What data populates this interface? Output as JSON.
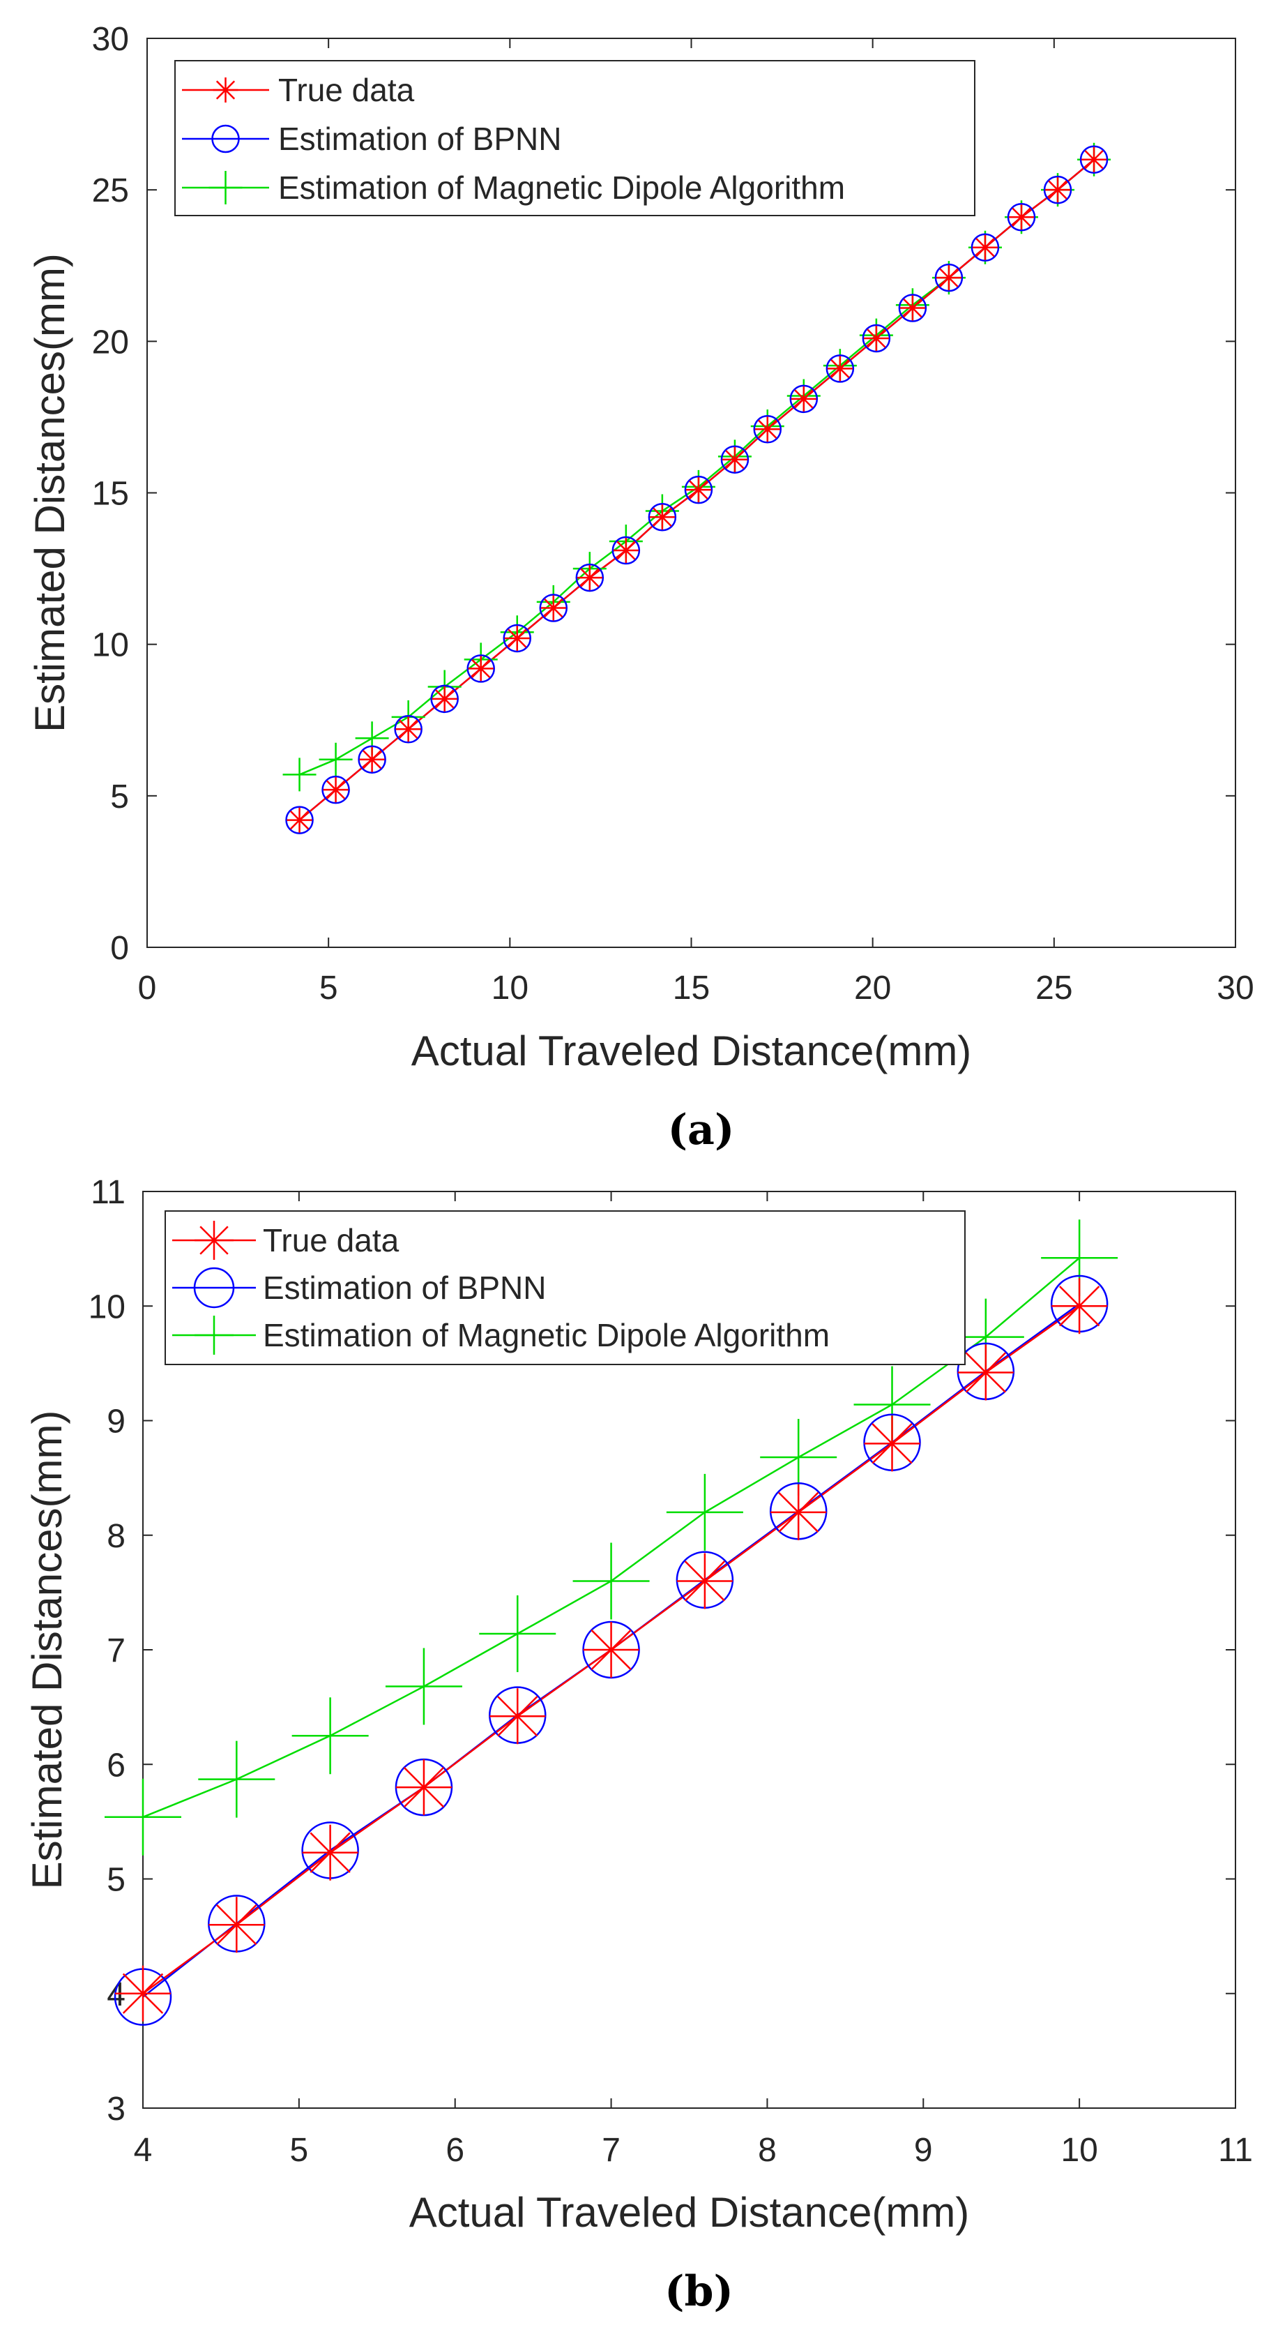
{
  "chart_data": [
    {
      "type": "line",
      "panel_label": "a",
      "caption": "(a)",
      "title": "",
      "xlabel": "Actual Traveled Distance(mm)",
      "ylabel": "Estimated Distances(mm)",
      "xlim": [
        0,
        30
      ],
      "ylim": [
        0,
        30
      ],
      "xticks": [
        0,
        5,
        10,
        15,
        20,
        25,
        30
      ],
      "yticks": [
        0,
        5,
        10,
        15,
        20,
        25,
        30
      ],
      "grid": false,
      "legend_position": "top-left",
      "series": [
        {
          "name": "True data",
          "color": "#ff0000",
          "marker": "asterisk",
          "x": [
            4.2,
            5.2,
            6.2,
            7.2,
            8.2,
            9.2,
            10.2,
            11.2,
            12.2,
            13.2,
            14.2,
            15.2,
            16.2,
            17.1,
            18.1,
            19.1,
            20.1,
            21.1,
            22.1,
            23.1,
            24.1,
            25.1,
            26.1
          ],
          "y": [
            4.2,
            5.2,
            6.2,
            7.2,
            8.2,
            9.2,
            10.2,
            11.2,
            12.2,
            13.1,
            14.2,
            15.1,
            16.1,
            17.1,
            18.1,
            19.1,
            20.1,
            21.1,
            22.1,
            23.1,
            24.1,
            25.0,
            26.0
          ]
        },
        {
          "name": "Estimation of BPNN",
          "color": "#0000ff",
          "marker": "circle",
          "x": [
            4.2,
            5.2,
            6.2,
            7.2,
            8.2,
            9.2,
            10.2,
            11.2,
            12.2,
            13.2,
            14.2,
            15.2,
            16.2,
            17.1,
            18.1,
            19.1,
            20.1,
            21.1,
            22.1,
            23.1,
            24.1,
            25.1,
            26.1
          ],
          "y": [
            4.2,
            5.2,
            6.2,
            7.2,
            8.2,
            9.2,
            10.2,
            11.2,
            12.2,
            13.1,
            14.2,
            15.1,
            16.1,
            17.1,
            18.1,
            19.1,
            20.1,
            21.1,
            22.1,
            23.1,
            24.1,
            25.0,
            26.0
          ]
        },
        {
          "name": "Estimation of Magnetic Dipole Algorithm",
          "color": "#00dd00",
          "marker": "plus",
          "x": [
            4.2,
            5.2,
            6.2,
            7.2,
            8.2,
            9.2,
            10.2,
            11.2,
            12.2,
            13.2,
            14.2,
            15.2,
            16.2,
            17.1,
            18.1,
            19.1,
            20.1,
            21.1,
            22.1,
            23.1,
            24.1,
            25.1,
            26.1
          ],
          "y": [
            5.7,
            6.2,
            6.9,
            7.6,
            8.6,
            9.5,
            10.4,
            11.4,
            12.5,
            13.4,
            14.4,
            15.2,
            16.2,
            17.2,
            18.2,
            19.2,
            20.2,
            21.2,
            22.1,
            23.1,
            24.1,
            25.0,
            26.0
          ]
        }
      ]
    },
    {
      "type": "line",
      "panel_label": "b",
      "caption": "(b)",
      "title": "",
      "xlabel": "Actual Traveled Distance(mm)",
      "ylabel": "Estimated Distances(mm)",
      "xlim": [
        4,
        11
      ],
      "ylim": [
        3,
        11
      ],
      "xticks": [
        4,
        5,
        6,
        7,
        8,
        9,
        10,
        11
      ],
      "yticks": [
        3,
        4,
        5,
        6,
        7,
        8,
        9,
        10,
        11
      ],
      "grid": false,
      "legend_position": "top-left",
      "series": [
        {
          "name": "True data",
          "color": "#ff0000",
          "marker": "asterisk",
          "x": [
            4.0,
            4.6,
            5.2,
            5.8,
            6.4,
            7.0,
            7.6,
            8.2,
            8.8,
            9.4,
            10.0
          ],
          "y": [
            4.0,
            4.6,
            5.23,
            5.8,
            6.42,
            7.0,
            7.6,
            8.2,
            8.8,
            9.42,
            10.0
          ]
        },
        {
          "name": "Estimation of BPNN",
          "color": "#0000ff",
          "marker": "circle",
          "x": [
            4.0,
            4.6,
            5.2,
            5.8,
            6.4,
            7.0,
            7.6,
            8.2,
            8.8,
            9.4,
            10.0
          ],
          "y": [
            3.97,
            4.61,
            5.25,
            5.8,
            6.43,
            7.0,
            7.61,
            8.21,
            8.81,
            9.43,
            10.02
          ]
        },
        {
          "name": "Estimation of Magnetic Dipole Algorithm",
          "color": "#00dd00",
          "marker": "plus",
          "x": [
            4.0,
            4.6,
            5.2,
            5.8,
            6.4,
            7.0,
            7.6,
            8.2,
            8.8,
            9.4,
            10.0
          ],
          "y": [
            5.54,
            5.87,
            6.25,
            6.68,
            7.14,
            7.6,
            8.2,
            8.68,
            9.14,
            9.73,
            10.42
          ]
        }
      ]
    }
  ]
}
